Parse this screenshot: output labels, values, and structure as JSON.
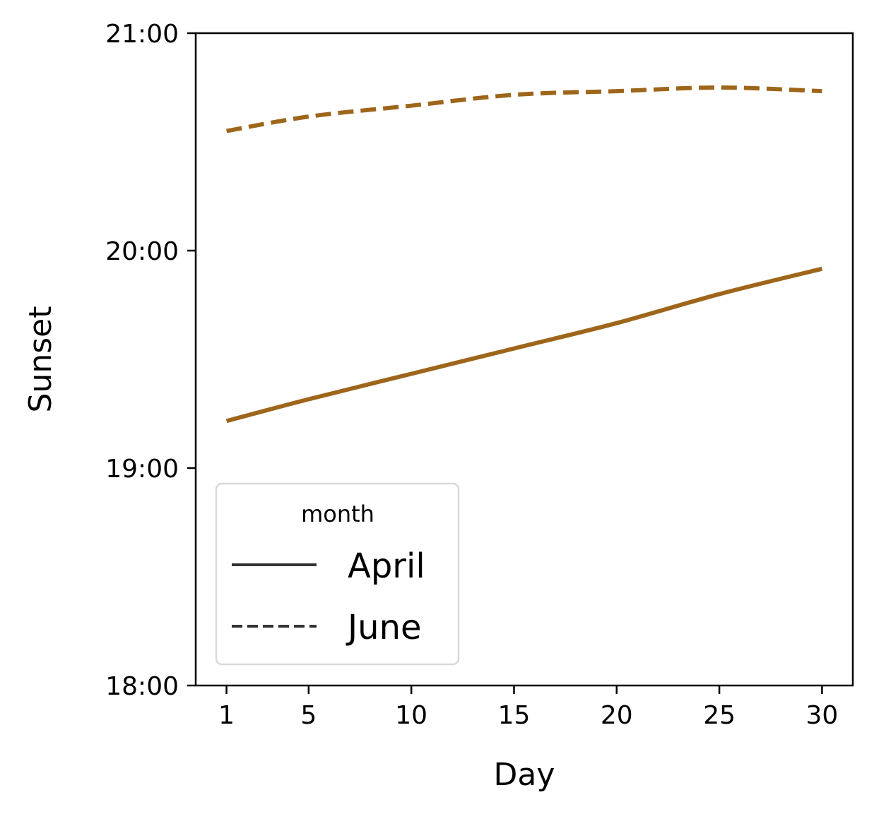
{
  "chart_data": {
    "type": "line",
    "xlabel": "Day",
    "ylabel": "Sunset",
    "x_ticks": [
      1,
      5,
      10,
      15,
      20,
      25,
      30
    ],
    "y_ticks": [
      "18:00",
      "19:00",
      "20:00",
      "21:00"
    ],
    "xlim": [
      -0.5,
      31.5
    ],
    "ylim": [
      "18:00",
      "21:00"
    ],
    "grid": false,
    "legend": {
      "title": "month",
      "placement": "lower-left"
    },
    "series": [
      {
        "name": "April",
        "line_style": "solid",
        "color": "#9e661b",
        "x": [
          1,
          5,
          10,
          15,
          20,
          25,
          30
        ],
        "y": [
          "19:13",
          "19:19",
          "19:26",
          "19:33",
          "19:40",
          "19:48",
          "19:55"
        ]
      },
      {
        "name": "June",
        "line_style": "dashed",
        "color": "#9e661b",
        "x": [
          1,
          5,
          10,
          15,
          20,
          25,
          30
        ],
        "y": [
          "20:33",
          "20:37",
          "20:40",
          "20:43",
          "20:44",
          "20:45",
          "20:44"
        ]
      }
    ]
  },
  "colors": {
    "line": "#9e661b",
    "legend_handle": "#333333",
    "legend_border": "#d9d9d9"
  }
}
